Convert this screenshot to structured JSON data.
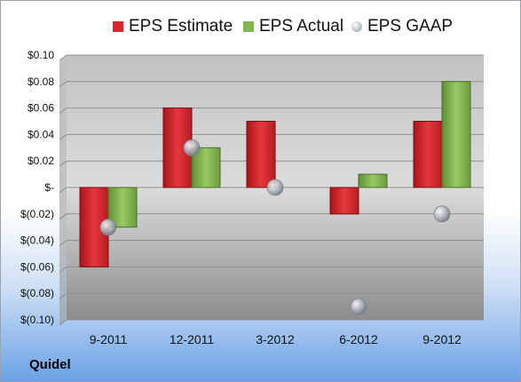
{
  "company": "Quidel",
  "legend": [
    {
      "label": "EPS Estimate",
      "color": "#e0262c"
    },
    {
      "label": "EPS Actual",
      "color": "#7fb84a"
    },
    {
      "label": "EPS GAAP",
      "color": "#a8b0b8"
    }
  ],
  "chart_data": {
    "type": "bar",
    "categories": [
      "9-2011",
      "12-2011",
      "3-2012",
      "6-2012",
      "9-2012"
    ],
    "series": [
      {
        "name": "EPS Estimate",
        "type": "bar",
        "color": "#e0262c",
        "values": [
          -0.06,
          0.06,
          0.05,
          -0.02,
          0.05
        ]
      },
      {
        "name": "EPS Actual",
        "type": "bar",
        "color": "#7fb84a",
        "values": [
          -0.03,
          0.03,
          null,
          0.01,
          0.08
        ]
      },
      {
        "name": "EPS GAAP",
        "type": "scatter",
        "color": "#a8b0b8",
        "values": [
          -0.03,
          0.03,
          0.0,
          -0.09,
          -0.02
        ]
      }
    ],
    "ylim": [
      -0.1,
      0.1
    ],
    "yticks": [
      0.1,
      0.08,
      0.06,
      0.04,
      0.02,
      0.0,
      -0.02,
      -0.04,
      -0.06,
      -0.08,
      -0.1
    ],
    "ytick_labels": [
      "$0.10",
      "$0.08",
      "$0.06",
      "$0.04",
      "$0.02",
      "$-",
      "$(0.02)",
      "$(0.04)",
      "$(0.06)",
      "$(0.08)",
      "$(0.10)"
    ],
    "grid": true,
    "legend_position": "top"
  }
}
